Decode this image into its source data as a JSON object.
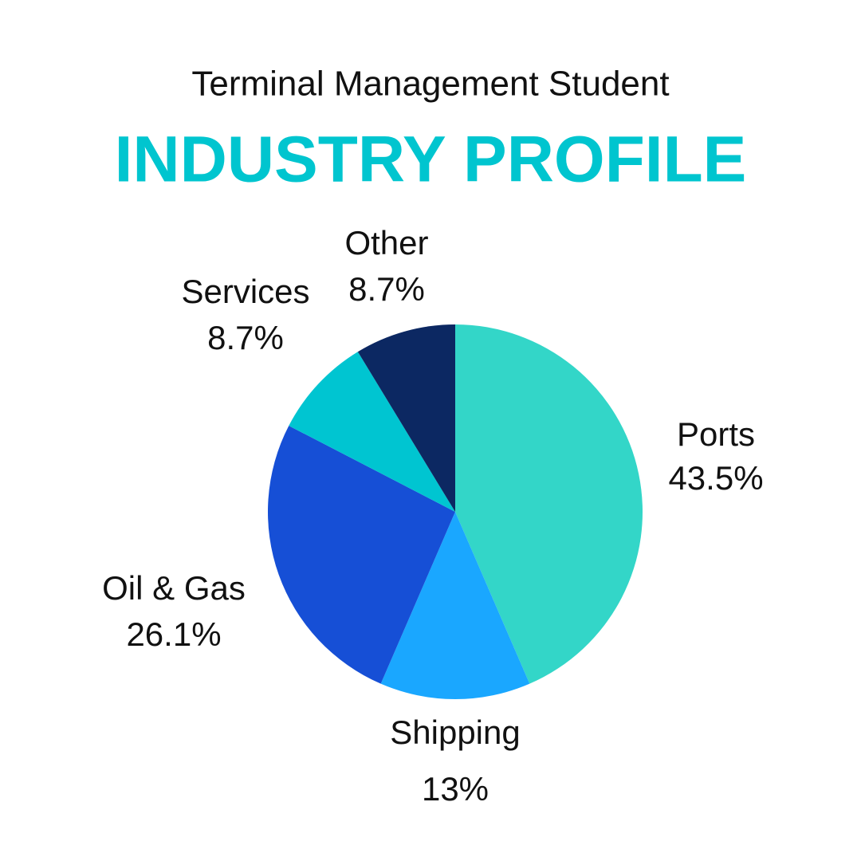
{
  "chart_data": {
    "type": "pie",
    "title": "Terminal Management Student",
    "subtitle": "INDUSTRY PROFILE",
    "categories": [
      "Ports",
      "Shipping",
      "Oil & Gas",
      "Services",
      "Other"
    ],
    "values": [
      43.5,
      13,
      26.1,
      8.7,
      8.7
    ],
    "value_labels": [
      "43.5%",
      "13%",
      "26.1%",
      "8.7%",
      "8.7%"
    ],
    "colors": [
      "#33d6c8",
      "#1aa7ff",
      "#164fd6",
      "#00c5d1",
      "#0c2862"
    ]
  }
}
